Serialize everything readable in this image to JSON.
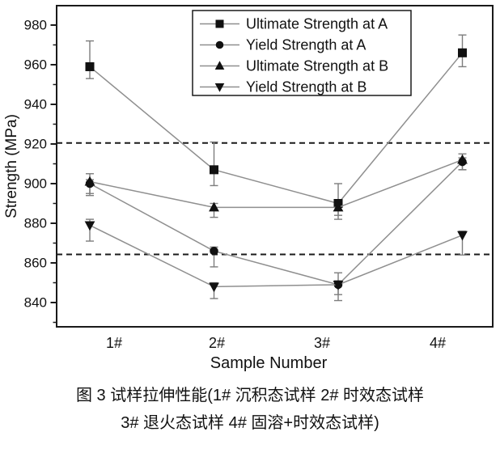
{
  "chart_data": {
    "type": "line",
    "title": "",
    "xlabel": "Sample Number",
    "ylabel": "Strength (MPa)",
    "categories": [
      "1#",
      "2#",
      "3#",
      "4#"
    ],
    "ylim": [
      828,
      990
    ],
    "yticks_major": [
      840,
      860,
      880,
      900,
      920,
      940,
      960,
      980
    ],
    "yticks_minor_step": 10,
    "grid": false,
    "legend_position": "top-center-inside",
    "dashed_reference_lines": [
      920.5,
      864.3
    ],
    "series": [
      {
        "name": "Ultimate Strength at A",
        "marker": "square",
        "values": [
          959,
          907,
          890,
          966
        ],
        "err_lo": [
          6,
          8,
          8,
          7
        ],
        "err_hi": [
          13,
          14,
          10,
          9
        ]
      },
      {
        "name": "Yield Strength at A",
        "marker": "circle",
        "values": [
          900,
          866,
          849,
          911
        ],
        "err_lo": [
          5,
          8,
          5,
          4
        ],
        "err_hi": [
          2,
          2,
          6,
          2
        ]
      },
      {
        "name": "Ultimate Strength at B",
        "marker": "triangle-up",
        "values": [
          901,
          888,
          888,
          912
        ],
        "err_lo": [
          7,
          5,
          4,
          5
        ],
        "err_hi": [
          4,
          2,
          2,
          3
        ]
      },
      {
        "name": "Yield Strength at B",
        "marker": "triangle-down",
        "values": [
          879,
          848,
          849,
          874
        ],
        "err_lo": [
          8,
          6,
          8,
          10
        ],
        "err_hi": [
          3,
          2,
          2,
          2
        ]
      }
    ],
    "colors": {
      "line": "#8f8f8f",
      "marker": "#111111",
      "error_bar": "#7d7d7d",
      "dashed_line": "#1a1a1a",
      "axis": "#1a1a1a",
      "text": "#111111"
    }
  },
  "caption": {
    "line1": "图 3  试样拉伸性能(1# 沉积态试样 2# 时效态试样",
    "line2": "3# 退火态试样 4# 固溶+时效态试样)"
  }
}
